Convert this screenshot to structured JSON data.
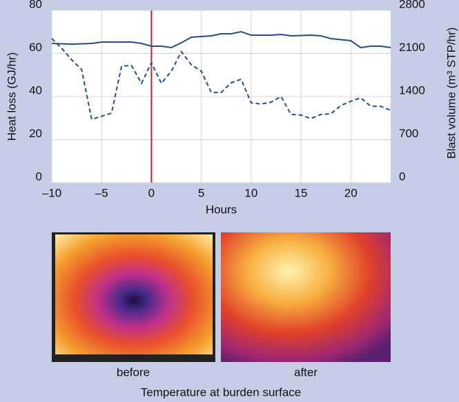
{
  "chart_data": {
    "type": "line",
    "xlabel": "Hours",
    "ylabel": "Heat loss (GJ/hr)",
    "y2label": "Blast volume (m³ STP/hr)",
    "xlim": [
      -10,
      24
    ],
    "xticks": [
      {
        "value": -10,
        "label": "–10"
      },
      {
        "value": -5,
        "label": "–5"
      },
      0,
      5,
      10,
      15,
      20
    ],
    "ylim": [
      0,
      80
    ],
    "yticks": [
      0,
      20,
      40,
      60,
      80
    ],
    "y2lim": [
      0,
      2800
    ],
    "y2ticks": [
      0,
      700,
      1400,
      2100,
      2800
    ],
    "grid": true,
    "vline": {
      "x": 0,
      "color": "#c0282d"
    },
    "series": [
      {
        "color": "#1f4e8c",
        "dash": false,
        "axis": "y2",
        "x": [
          -10,
          -8,
          -6,
          -5,
          -2,
          -1,
          0,
          1,
          2,
          3,
          4,
          6,
          7,
          8,
          9,
          10,
          12,
          13,
          14,
          16,
          17,
          18,
          20,
          21,
          22,
          23,
          24
        ],
        "values": [
          2262,
          2251,
          2262,
          2285,
          2285,
          2262,
          2218,
          2218,
          2195,
          2274,
          2363,
          2386,
          2419,
          2419,
          2453,
          2397,
          2397,
          2408,
          2386,
          2397,
          2386,
          2341,
          2307,
          2195,
          2218,
          2218,
          2195
        ]
      },
      {
        "color": "#1f4e8c",
        "dash": true,
        "axis": "y",
        "x": [
          -10,
          -9,
          -8,
          -7,
          -6,
          -4,
          -3,
          -2,
          -1,
          0,
          1,
          2,
          3,
          4,
          5,
          6,
          7,
          8,
          9,
          10,
          11,
          12,
          13,
          14,
          15,
          16,
          17,
          18,
          19,
          20,
          21,
          22,
          23,
          24
        ],
        "values": [
          66.9,
          62.4,
          57,
          52.5,
          29.4,
          32.3,
          54.1,
          54.4,
          46.1,
          55.7,
          46.1,
          51.8,
          60.8,
          54.7,
          51.8,
          41.9,
          41.9,
          46.4,
          48,
          37.1,
          36.5,
          37.4,
          40,
          31.7,
          31.4,
          29.8,
          31.7,
          32,
          35.8,
          37.8,
          39.4,
          35.5,
          35.5,
          33.6
        ]
      }
    ]
  },
  "images": [
    {
      "label": "before"
    },
    {
      "label": "after"
    }
  ],
  "caption": "Temperature at burden surface"
}
